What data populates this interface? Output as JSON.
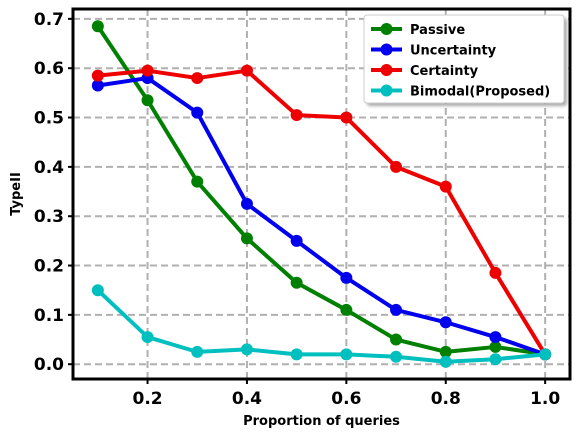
{
  "chart_data": {
    "type": "line",
    "title": "",
    "xlabel": "Proportion of queries",
    "ylabel": "TypeII",
    "xlim": [
      0.05,
      1.05
    ],
    "ylim": [
      -0.03,
      0.72
    ],
    "xticks": [
      0.2,
      0.4,
      0.6,
      0.8,
      1.0
    ],
    "xtick_labels": [
      "0.2",
      "0.4",
      "0.6",
      "0.8",
      "1.0"
    ],
    "yticks": [
      0.0,
      0.1,
      0.2,
      0.3,
      0.4,
      0.5,
      0.6,
      0.7
    ],
    "ytick_labels": [
      "0.0",
      "0.1",
      "0.2",
      "0.3",
      "0.4",
      "0.5",
      "0.6",
      "0.7"
    ],
    "grid": true,
    "legend_position": "top-right",
    "x": [
      0.1,
      0.2,
      0.3,
      0.4,
      0.5,
      0.6,
      0.7,
      0.8,
      0.9,
      1.0
    ],
    "series": [
      {
        "name": "Passive",
        "color": "#008000",
        "values": [
          0.685,
          0.535,
          0.37,
          0.255,
          0.165,
          0.11,
          0.05,
          0.025,
          0.035,
          0.02
        ]
      },
      {
        "name": "Uncertainty",
        "color": "#0000ee",
        "values": [
          0.565,
          0.58,
          0.51,
          0.325,
          0.25,
          0.175,
          0.11,
          0.085,
          0.055,
          0.02
        ]
      },
      {
        "name": "Certainty",
        "color": "#ee0000",
        "values": [
          0.585,
          0.595,
          0.58,
          0.595,
          0.505,
          0.5,
          0.4,
          0.36,
          0.185,
          0.02
        ]
      },
      {
        "name": "Bimodal(Proposed)",
        "color": "#00bfbf",
        "values": [
          0.15,
          0.055,
          0.025,
          0.03,
          0.02,
          0.02,
          0.015,
          0.005,
          0.01,
          0.02
        ]
      }
    ]
  }
}
